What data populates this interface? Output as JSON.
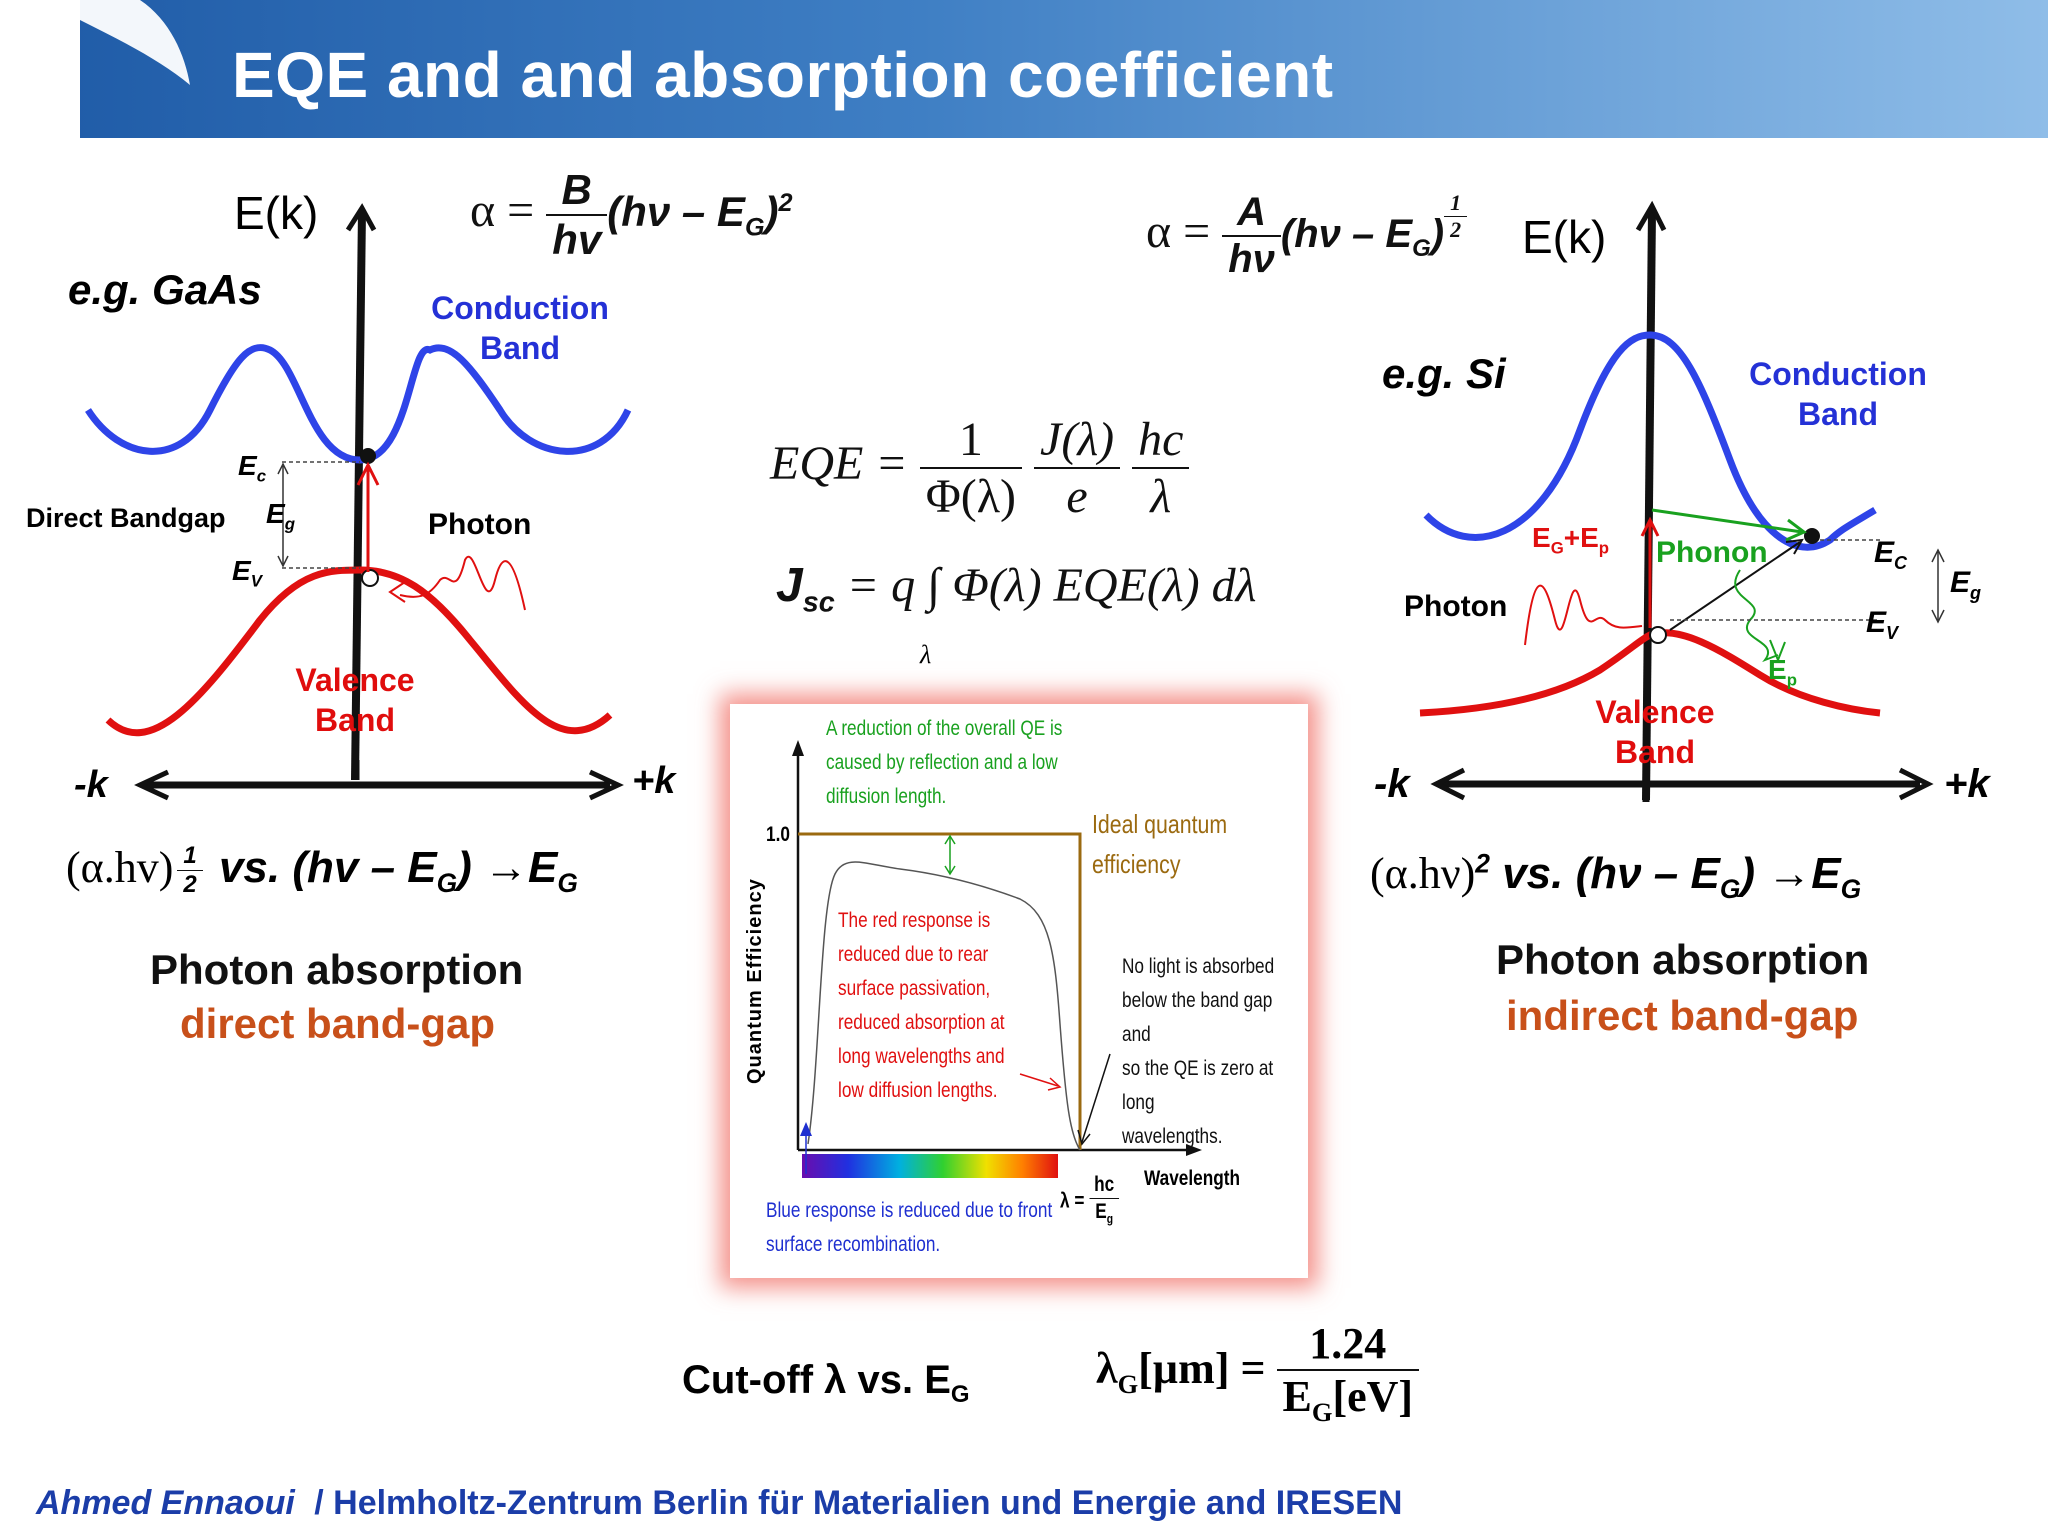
{
  "slide": {
    "title": "EQE and and absorption coefficient",
    "footer_author": "Ahmed Ennaoui",
    "footer_org": "/ Helmholtz-Zentrum Berlin für Materialien und Energie and IRESEN"
  },
  "direct": {
    "axis_label": "E(k)",
    "material": "e.g.  GaAs",
    "formula": {
      "alpha": "α =",
      "num": "B",
      "den": "hv",
      "tail": "(hν – E",
      "sub": "G",
      "close": ")",
      "exp": "2"
    },
    "conduction_band": [
      "Conduction",
      "Band"
    ],
    "valence_band": [
      "Valence",
      "Band"
    ],
    "direct_bandgap": "Direct Bandgap",
    "ec": "E",
    "ec_sub": "c",
    "eg": "E",
    "eg_sub": "g",
    "ev": "E",
    "ev_sub": "V",
    "photon": "Photon",
    "neg_k": "-k",
    "pos_k": "+k",
    "plot_rule": {
      "lhs": "(α.hv)",
      "exp_num": "1",
      "exp_den": "2",
      "vs": "vs. (hv – E",
      "sub": "G",
      "arrow": ") →E",
      "sub2": "G"
    },
    "caption1": "Photon absorption",
    "caption2": "direct band-gap"
  },
  "indirect": {
    "axis_label": "E(k)",
    "material": "e.g.  Si",
    "formula": {
      "alpha": "α =",
      "num": "A",
      "den": "hν",
      "tail": "(hν – E",
      "sub": "G",
      "close": ")",
      "exp_num": "1",
      "exp_den": "2"
    },
    "conduction_band": [
      "Conduction",
      "Band"
    ],
    "valence_band": [
      "Valence",
      "Band"
    ],
    "photon": "Photon",
    "phonon": "Phonon",
    "eg_ep": "E",
    "eg_ep_sub": "G",
    "eg_ep_plus": "+E",
    "eg_ep_sub2": "p",
    "ep": "E",
    "ep_sub": "p",
    "ec": "E",
    "ec_sub": "C",
    "eg": "E",
    "eg_sub": "g",
    "ev": "E",
    "ev_sub": "V",
    "neg_k": "-k",
    "pos_k": "+k",
    "plot_rule": {
      "lhs": "(α.hν)",
      "exp": "2",
      "vs": "vs.  (hν – E",
      "sub": "G",
      "arrow": ") →E",
      "sub2": "G"
    },
    "caption1": "Photon absorption",
    "caption2": "indirect band-gap"
  },
  "center": {
    "eqe": {
      "lhs": "EQE =",
      "f1_num": "1",
      "f1_den": "Φ(λ)",
      "f2_num": "J(λ)",
      "f2_den": "e",
      "f3_num": "hc",
      "f3_den": "λ"
    },
    "jsc": {
      "lhs": "J",
      "lhs_sub": "sc",
      "rhs": "= q ∫ Φ(λ) EQE(λ) dλ",
      "limit": "λ"
    },
    "cutoff": {
      "label": "Cut-off λ vs. E",
      "label_sub": "G",
      "lhs": "λ",
      "lhs_sub": "G",
      "lhs_unit": "[µm] =",
      "num": "1.24",
      "den": "E",
      "den_sub": "G",
      "den_unit": "[eV]"
    }
  },
  "qe_figure": {
    "y_label": "Quantum Efficiency",
    "y_tick": "1.0",
    "x_label": "Wavelength",
    "cutoff_lambda": "λ =",
    "cutoff_num": "hc",
    "cutoff_den": "E",
    "cutoff_den_sub": "g",
    "ideal": [
      "Ideal quantum",
      "efficiency"
    ],
    "note_top": [
      "A reduction of the overall QE is",
      "caused by reflection and a low",
      "diffusion length."
    ],
    "note_red": [
      "The red response is",
      "reduced due to rear",
      "surface passivation,",
      "reduced absorption at",
      "long wavelengths and",
      "low diffusion lengths."
    ],
    "note_right": [
      "No light  is absorbed",
      "below the band gap and",
      "so the QE is zero at  long",
      "wavelengths."
    ],
    "note_blue": [
      "Blue response is reduced due to front",
      "surface recombination."
    ],
    "colors": {
      "ideal": "#9b6a10",
      "green": "#19a11f",
      "red": "#e01010",
      "blue": "#1e2fd0"
    }
  }
}
